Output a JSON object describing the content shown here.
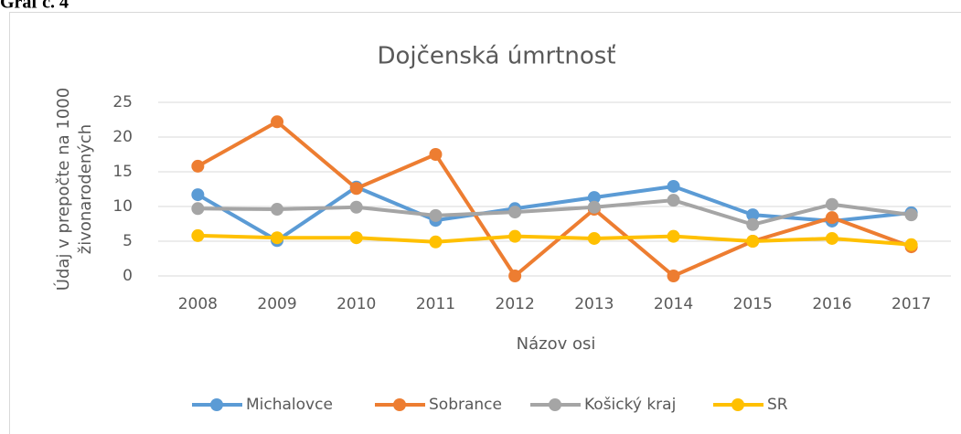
{
  "chart_data": {
    "type": "line",
    "figure_label": "Graf č. 4",
    "title": "Dojčenská úmrtnosť",
    "y_label_lines": [
      "Údaj v prepočte na 1000",
      "živonarodených"
    ],
    "x_label": "Názov osi",
    "categories": [
      "2008",
      "2009",
      "2010",
      "2011",
      "2012",
      "2013",
      "2014",
      "2015",
      "2016",
      "2017"
    ],
    "series": [
      {
        "name": "Michalovce",
        "color": "#5b9bd5",
        "values": [
          11.7,
          5.1,
          12.8,
          8.0,
          9.7,
          11.3,
          12.9,
          8.8,
          7.9,
          9.1
        ]
      },
      {
        "name": "Sobrance",
        "color": "#ed7d31",
        "values": [
          15.8,
          22.2,
          12.6,
          17.5,
          0,
          9.6,
          0,
          5.0,
          8.4,
          4.2
        ]
      },
      {
        "name": "Košický kraj",
        "color": "#a5a5a5",
        "values": [
          9.7,
          9.6,
          9.9,
          8.7,
          9.2,
          9.9,
          10.9,
          7.4,
          10.3,
          8.8
        ]
      },
      {
        "name": "SR",
        "color": "#ffc000",
        "values": [
          5.8,
          5.5,
          5.5,
          4.9,
          5.7,
          5.4,
          5.7,
          5.0,
          5.4,
          4.5
        ]
      }
    ],
    "ylim": [
      0,
      25
    ],
    "yticks": [
      0,
      5,
      10,
      15,
      20,
      25
    ],
    "grid": true,
    "legend": "bottom"
  }
}
